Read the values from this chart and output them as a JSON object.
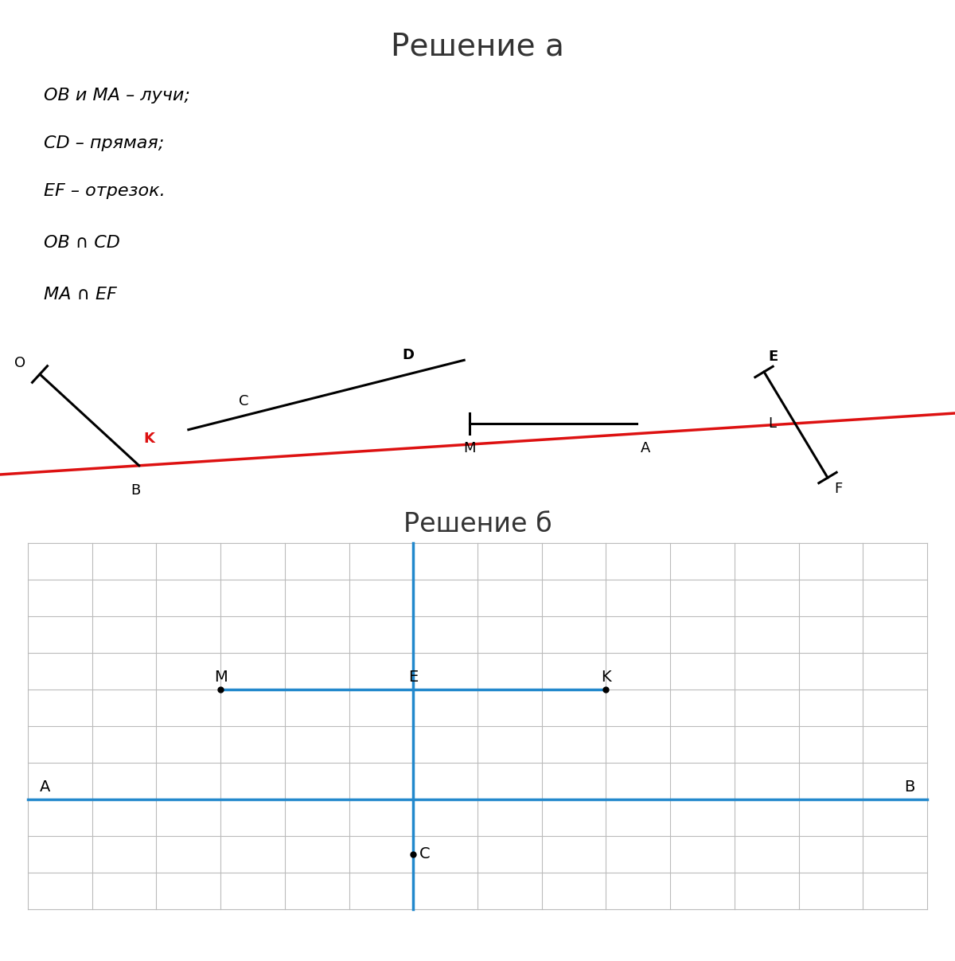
{
  "title_a": "Решение а",
  "title_b": "Решение б",
  "text_lines": [
    "OB и MA – лучи;",
    "CD – прямая;",
    "EF – отрезок.",
    "OB ∩ CD",
    "MA ∩ EF"
  ],
  "bg_color": "#ffffff",
  "grid_color": "#bbbbbb",
  "blue_color": "#2288cc",
  "red_color": "#dd1111",
  "black_color": "#000000",
  "diagram_bg": "#d8d8d8"
}
